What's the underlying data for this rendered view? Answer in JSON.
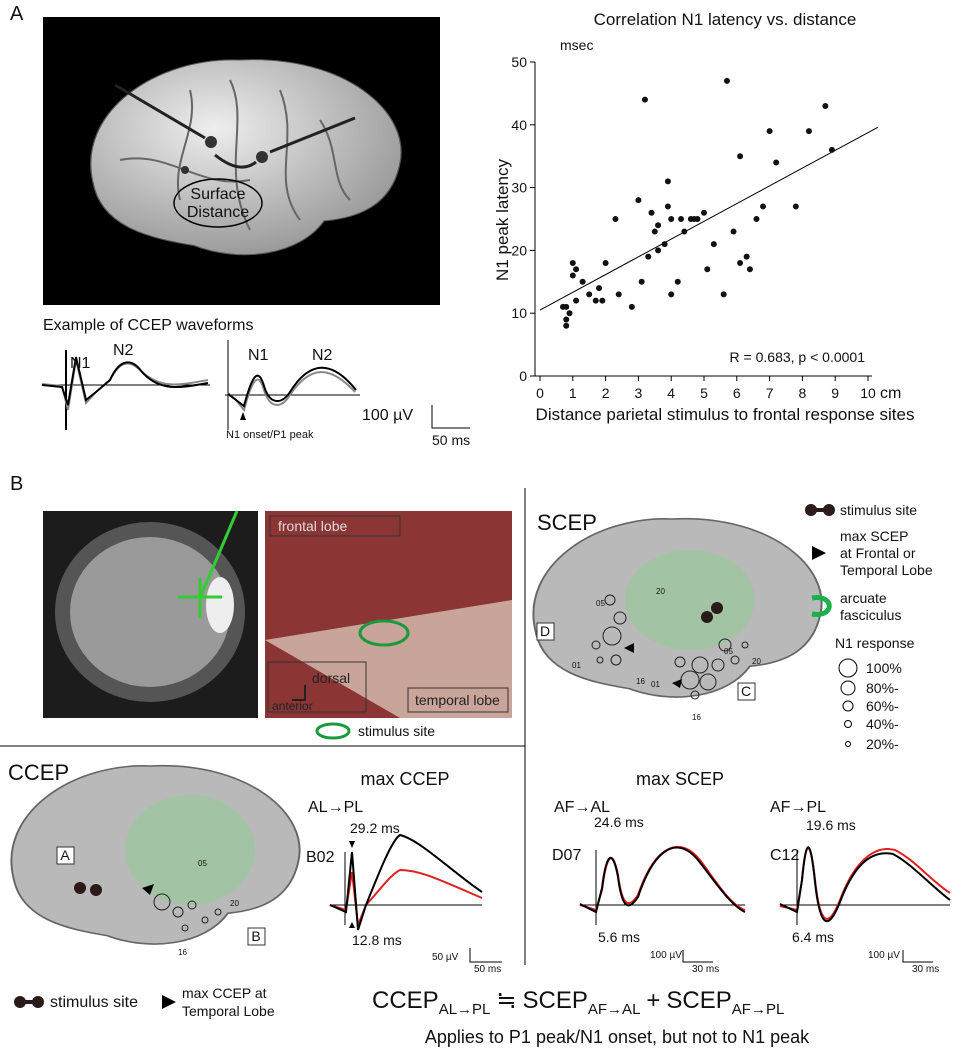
{
  "panel_a": {
    "label": "A",
    "brain": {
      "annotation": [
        "Surface",
        "Distance"
      ]
    },
    "waveforms": {
      "title": "Example of CCEP waveforms",
      "left": {
        "n1": "N1",
        "n2": "N2"
      },
      "right": {
        "n1": "N1",
        "n2": "N2",
        "onset": "N1 onset/P1 peak"
      },
      "scale_amplitude": "100 µV",
      "scale_time": "50 ms"
    }
  },
  "chart_data": {
    "type": "scatter",
    "title": "Correlation N1 latency vs. distance",
    "x_label": "Distance parietal stimulus to frontal response sites",
    "y_label": "N1 peak latency",
    "x_unit": "cm",
    "y_unit": "msec",
    "annotation": "R = 0.683, p < 0.0001",
    "xlim": [
      0,
      10
    ],
    "ylim": [
      0,
      50
    ],
    "xticks": [
      0,
      1,
      2,
      3,
      4,
      5,
      6,
      7,
      8,
      9,
      10
    ],
    "yticks": [
      0,
      10,
      20,
      30,
      40,
      50
    ],
    "color": "#111111",
    "x": [
      0.7,
      0.8,
      0.8,
      0.8,
      0.9,
      1.0,
      1.0,
      1.1,
      1.1,
      1.3,
      1.5,
      1.7,
      1.8,
      1.9,
      2.0,
      2.3,
      2.4,
      2.8,
      3.0,
      3.1,
      3.2,
      3.3,
      3.4,
      3.5,
      3.6,
      3.6,
      3.8,
      3.9,
      3.9,
      4.0,
      4.0,
      4.2,
      4.3,
      4.4,
      4.6,
      4.7,
      4.8,
      5.0,
      5.1,
      5.3,
      5.6,
      5.7,
      5.9,
      6.1,
      6.1,
      6.3,
      6.4,
      6.6,
      6.8,
      7.0,
      7.2,
      7.8,
      8.2,
      8.7,
      8.9
    ],
    "y": [
      11,
      11,
      9,
      8,
      10,
      16,
      18,
      17,
      12,
      15,
      13,
      12,
      14,
      12,
      18,
      25,
      13,
      11,
      28,
      15,
      44,
      19,
      26,
      23,
      20,
      24,
      21,
      31,
      27,
      13,
      25,
      15,
      25,
      23,
      25,
      25,
      25,
      26,
      17,
      21,
      13,
      47,
      23,
      35,
      18,
      19,
      17,
      25,
      27,
      39,
      34,
      27,
      39,
      43,
      36
    ],
    "fit": {
      "x": [
        0,
        10.3
      ],
      "y": [
        10.5,
        39.6
      ]
    }
  },
  "panel_b": {
    "label": "B",
    "photo": {
      "frontal": "frontal lobe",
      "dorsal": "dorsal",
      "anterior": "anterior",
      "temporal": "temporal lobe",
      "legend": "stimulus site"
    },
    "scep": {
      "title": "SCEP",
      "labels": [
        "05",
        "20",
        "D",
        "01",
        "05",
        "20",
        "16",
        "01",
        "C",
        "16"
      ]
    },
    "legend": {
      "stimulus": "stimulus site",
      "max_scep": [
        "max SCEP",
        "at Frontal or",
        "Temporal Lobe"
      ],
      "arcuate": [
        "arcuate",
        "fasciculus"
      ],
      "n1_title": "N1 response",
      "n1_levels": [
        "100%",
        "80%-",
        "60%-",
        "40%-",
        "20%-"
      ]
    },
    "ccep": {
      "title": "CCEP",
      "labels": [
        "A",
        "05",
        "20",
        "B",
        "16"
      ]
    },
    "max_ccep": {
      "title": "max CCEP",
      "route": "AL→PL",
      "site": "B02",
      "peak": "29.2 ms",
      "onset": "12.8 ms",
      "amp": "50 µV",
      "time": "50 ms"
    },
    "max_scep": {
      "title": "max SCEP",
      "left": {
        "route": "AF→AL",
        "site": "D07",
        "peak": "24.6 ms",
        "onset": "5.6 ms",
        "amp": "100 µV",
        "time": "30 ms"
      },
      "right": {
        "route": "AF→PL",
        "site": "C12",
        "peak": "19.6 ms",
        "onset": "6.4 ms",
        "amp": "100 µV",
        "time": "30 ms"
      }
    },
    "bottom_legend": {
      "stimulus": "stimulus site",
      "max_ccep": [
        "max CCEP at",
        "Temporal Lobe"
      ]
    },
    "equation": {
      "ccep": "CCEP",
      "ccep_sub": "AL→PL",
      "approx": "≒",
      "scep1": "SCEP",
      "scep1_sub": "AF→AL",
      "plus": "+",
      "scep2": "SCEP",
      "scep2_sub": "AF→PL"
    },
    "note": "Applies to P1 peak/N1 onset, but not to N1 peak"
  }
}
